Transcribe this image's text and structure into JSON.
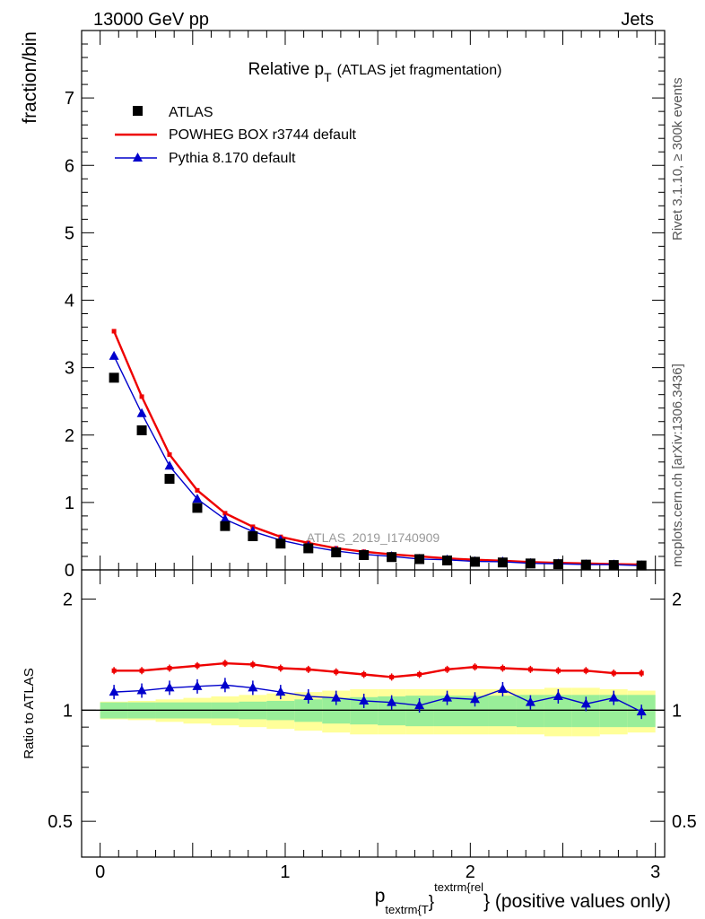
{
  "header": {
    "energy": "13000 GeV pp",
    "process": "Jets"
  },
  "side_labels": {
    "rivet": "Rivet 3.1.10, ≥ 300k events",
    "mcplots": "mcplots.cern.ch [arXiv:1306.3436]"
  },
  "colors": {
    "powheg": "#ee0000",
    "pythia": "#0000cc",
    "data": "#000000",
    "band_inner": "#99ee99",
    "band_outer": "#ffff99"
  },
  "chart_data": [
    {
      "type": "scatter",
      "title_main": "Relative p",
      "title_sub": "T",
      "title_rest": "(ATLAS jet fragmentation)",
      "ylabel": "fraction/bin",
      "watermark": "ATLAS_2019_I1740909",
      "xlim": [
        -0.1,
        3.05
      ],
      "ylim": [
        0,
        8
      ],
      "yticks": [
        0,
        1,
        2,
        3,
        4,
        5,
        6,
        7
      ],
      "x": [
        0.075,
        0.225,
        0.375,
        0.525,
        0.675,
        0.825,
        0.975,
        1.125,
        1.275,
        1.425,
        1.575,
        1.725,
        1.875,
        2.025,
        2.175,
        2.325,
        2.475,
        2.625,
        2.775,
        2.925
      ],
      "legend": [
        "ATLAS",
        "POWHEG BOX r3744 default",
        "Pythia 8.170 default"
      ],
      "series": [
        {
          "name": "ATLAS",
          "values": [
            2.85,
            2.07,
            1.35,
            0.92,
            0.65,
            0.5,
            0.39,
            0.32,
            0.26,
            0.22,
            0.19,
            0.16,
            0.14,
            0.12,
            0.11,
            0.095,
            0.085,
            0.078,
            0.072,
            0.065
          ]
        },
        {
          "name": "POWHEG BOX r3744 default",
          "values": [
            3.54,
            2.57,
            1.71,
            1.18,
            0.84,
            0.64,
            0.49,
            0.4,
            0.32,
            0.27,
            0.23,
            0.2,
            0.17,
            0.15,
            0.135,
            0.115,
            0.104,
            0.095,
            0.086,
            0.079
          ]
        },
        {
          "name": "Pythia 8.170 default",
          "values": [
            3.17,
            2.32,
            1.54,
            1.05,
            0.75,
            0.57,
            0.44,
            0.35,
            0.28,
            0.23,
            0.2,
            0.16,
            0.15,
            0.125,
            0.12,
            0.098,
            0.09,
            0.079,
            0.077,
            0.063
          ]
        }
      ]
    },
    {
      "type": "line",
      "ylabel": "Ratio to ATLAS",
      "xlabel_main": "p",
      "xlabel_sub": "textrm{T",
      "xlabel_brace": "}",
      "xlabel_sup": "textrm{rel",
      "xlabel_rest": "} (positive values only)",
      "xlim": [
        -0.1,
        3.05
      ],
      "ylim": [
        0.4,
        2.4
      ],
      "yscale": "log",
      "yticks": [
        0.5,
        1,
        2
      ],
      "ytick_labels": [
        "0.5",
        "1",
        "2"
      ],
      "xticks": [
        0,
        1,
        2,
        3
      ],
      "xtick_labels": [
        "0",
        "1",
        "2",
        "3"
      ],
      "x": [
        0.075,
        0.225,
        0.375,
        0.525,
        0.675,
        0.825,
        0.975,
        1.125,
        1.275,
        1.425,
        1.575,
        1.725,
        1.875,
        2.025,
        2.175,
        2.325,
        2.475,
        2.625,
        2.775,
        2.925
      ],
      "bin_edges": [
        0.0,
        0.15,
        0.3,
        0.45,
        0.6,
        0.75,
        0.9,
        1.05,
        1.2,
        1.35,
        1.5,
        1.65,
        1.8,
        1.95,
        2.1,
        2.25,
        2.4,
        2.55,
        2.7,
        2.85,
        3.0
      ],
      "band_inner": [
        0.05,
        0.05,
        0.05,
        0.05,
        0.05,
        0.055,
        0.06,
        0.07,
        0.08,
        0.085,
        0.09,
        0.095,
        0.095,
        0.095,
        0.095,
        0.1,
        0.1,
        0.1,
        0.1,
        0.1
      ],
      "band_outer": [
        0.055,
        0.06,
        0.07,
        0.08,
        0.09,
        0.1,
        0.11,
        0.12,
        0.13,
        0.14,
        0.14,
        0.14,
        0.14,
        0.14,
        0.14,
        0.14,
        0.15,
        0.15,
        0.14,
        0.13
      ],
      "series": [
        {
          "name": "POWHEG BOX r3744 default",
          "values": [
            1.28,
            1.28,
            1.3,
            1.32,
            1.34,
            1.33,
            1.3,
            1.29,
            1.27,
            1.25,
            1.23,
            1.25,
            1.29,
            1.31,
            1.3,
            1.29,
            1.28,
            1.28,
            1.26,
            1.26
          ]
        },
        {
          "name": "Pythia 8.170 default",
          "values": [
            1.12,
            1.13,
            1.15,
            1.16,
            1.17,
            1.15,
            1.12,
            1.09,
            1.08,
            1.06,
            1.05,
            1.03,
            1.08,
            1.07,
            1.14,
            1.05,
            1.09,
            1.04,
            1.08,
            0.99
          ]
        }
      ]
    }
  ]
}
